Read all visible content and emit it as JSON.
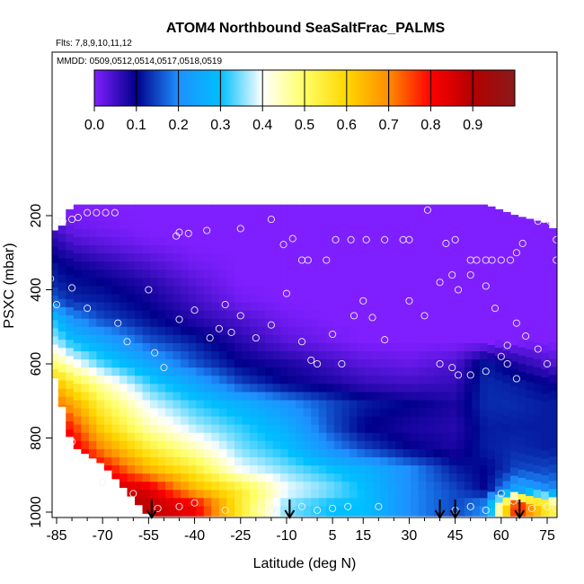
{
  "chart_data": {
    "type": "heatmap",
    "title": "ATOM4 Northbound SeaSaltFrac_PALMS",
    "flights_label": "Flts: 7,8,9,10,11,12",
    "dates_label": "MMDD: 0509,0512,0514,0517,0518,0519",
    "xlabel": "Latitude (deg N)",
    "ylabel": "PSXC (mbar)",
    "xlim": [
      -87,
      83
    ],
    "ylim": [
      1010,
      100
    ],
    "x_ticks": [
      -85,
      -70,
      -55,
      -40,
      -25,
      -10,
      5,
      15,
      30,
      45,
      60,
      75
    ],
    "y_ticks": [
      200,
      400,
      600,
      800,
      1000
    ],
    "colorbar": {
      "range": [
        0,
        1
      ],
      "tick_labels": [
        "0.0",
        "0.1",
        "0.2",
        "0.3",
        "0.4",
        "0.5",
        "0.6",
        "0.7",
        "0.8",
        "0.9"
      ],
      "colors": [
        "#7f1fff",
        "#00008b",
        "#1e90ff",
        "#00bfff",
        "#ffffff",
        "#ffff66",
        "#ffd700",
        "#ff8c00",
        "#ff0000",
        "#b30000",
        "#8b1a1a"
      ]
    },
    "columns": [
      {
        "lat": -87,
        "top": 240,
        "bottom": 600
      },
      {
        "lat": -84,
        "top": 240,
        "bottom": 690
      },
      {
        "lat": -80,
        "top": 170,
        "bottom": 820
      },
      {
        "lat": -70,
        "top": 170,
        "bottom": 870
      },
      {
        "lat": -55,
        "top": 170,
        "bottom": 1010
      },
      {
        "lat": -40,
        "top": 170,
        "bottom": 1010
      },
      {
        "lat": -25,
        "top": 170,
        "bottom": 1010
      },
      {
        "lat": -10,
        "top": 170,
        "bottom": 1010
      },
      {
        "lat": 5,
        "top": 170,
        "bottom": 1010
      },
      {
        "lat": 15,
        "top": 170,
        "bottom": 1010
      },
      {
        "lat": 30,
        "top": 170,
        "bottom": 1010
      },
      {
        "lat": 45,
        "top": 170,
        "bottom": 1010
      },
      {
        "lat": 55,
        "top": 170,
        "bottom": 1010
      },
      {
        "lat": 65,
        "top": 200,
        "bottom": 1010
      },
      {
        "lat": 75,
        "top": 220,
        "bottom": 1010
      },
      {
        "lat": 80,
        "top": 260,
        "bottom": 1010
      }
    ],
    "layers": [
      {
        "p": 180,
        "v": [
          0.0,
          0.0,
          0.0,
          0.0,
          0.0,
          0.0,
          0.0,
          0.0,
          0.0,
          0.0,
          0.0,
          0.0,
          0.0,
          0.0,
          0.0,
          0.0
        ]
      },
      {
        "p": 240,
        "v": [
          0.05,
          0.04,
          0.02,
          0.01,
          0.0,
          0.0,
          0.0,
          0.0,
          0.0,
          0.0,
          0.0,
          0.0,
          0.0,
          0.0,
          0.0,
          0.0
        ]
      },
      {
        "p": 280,
        "v": [
          0.08,
          0.07,
          0.05,
          0.03,
          0.01,
          0.0,
          0.0,
          0.0,
          0.0,
          0.0,
          0.0,
          0.0,
          0.0,
          0.0,
          0.0,
          0.0
        ]
      },
      {
        "p": 330,
        "v": [
          0.12,
          0.1,
          0.09,
          0.07,
          0.04,
          0.01,
          0.0,
          0.0,
          0.0,
          0.0,
          0.0,
          0.0,
          0.0,
          0.0,
          0.0,
          0.0
        ]
      },
      {
        "p": 380,
        "v": [
          0.13,
          0.12,
          0.11,
          0.1,
          0.07,
          0.03,
          0.0,
          0.0,
          0.0,
          0.0,
          0.0,
          0.0,
          0.0,
          0.0,
          0.0,
          0.0
        ]
      },
      {
        "p": 430,
        "v": [
          0.18,
          0.15,
          0.13,
          0.12,
          0.09,
          0.05,
          0.01,
          0.0,
          0.0,
          0.0,
          0.0,
          0.0,
          0.0,
          0.0,
          0.0,
          0.0
        ]
      },
      {
        "p": 480,
        "v": [
          0.32,
          0.27,
          0.21,
          0.15,
          0.11,
          0.07,
          0.04,
          0.01,
          0.0,
          0.0,
          0.0,
          0.0,
          0.0,
          0.0,
          0.0,
          0.0
        ]
      },
      {
        "p": 540,
        "v": [
          0.38,
          0.35,
          0.3,
          0.25,
          0.16,
          0.12,
          0.07,
          0.03,
          0.01,
          0.0,
          0.0,
          0.0,
          0.0,
          0.0,
          0.0,
          0.0
        ]
      },
      {
        "p": 600,
        "v": [
          0.5,
          0.47,
          0.42,
          0.33,
          0.25,
          0.16,
          0.1,
          0.08,
          0.05,
          0.03,
          0.02,
          0.04,
          0.12,
          0.08,
          0.04,
          0.03
        ]
      },
      {
        "p": 655,
        "v": [
          0.65,
          0.62,
          0.56,
          0.45,
          0.33,
          0.25,
          0.15,
          0.1,
          0.08,
          0.06,
          0.05,
          0.06,
          0.13,
          0.12,
          0.1,
          0.1
        ]
      },
      {
        "p": 710,
        "v": [
          0.75,
          0.72,
          0.67,
          0.53,
          0.39,
          0.32,
          0.27,
          0.21,
          0.15,
          0.12,
          0.1,
          0.08,
          0.13,
          0.13,
          0.12,
          0.12
        ]
      },
      {
        "p": 770,
        "v": [
          0.85,
          0.82,
          0.77,
          0.6,
          0.45,
          0.37,
          0.32,
          0.26,
          0.15,
          0.1,
          0.08,
          0.07,
          0.12,
          0.12,
          0.12,
          0.12
        ]
      },
      {
        "p": 830,
        "v": [
          0.88,
          0.86,
          0.84,
          0.7,
          0.55,
          0.45,
          0.35,
          0.3,
          0.2,
          0.15,
          0.1,
          0.08,
          0.12,
          0.13,
          0.12,
          0.12
        ]
      },
      {
        "p": 885,
        "v": [
          0.92,
          0.9,
          0.88,
          0.82,
          0.65,
          0.55,
          0.4,
          0.35,
          0.3,
          0.27,
          0.2,
          0.12,
          0.1,
          0.15,
          0.15,
          0.15
        ]
      },
      {
        "p": 940,
        "v": [
          0.95,
          0.93,
          0.91,
          0.88,
          0.85,
          0.65,
          0.55,
          0.4,
          0.35,
          0.3,
          0.2,
          0.15,
          0.1,
          0.25,
          0.2,
          0.2
        ]
      },
      {
        "p": 980,
        "v": [
          0.95,
          0.94,
          0.93,
          0.91,
          0.88,
          0.82,
          0.55,
          0.35,
          0.3,
          0.3,
          0.2,
          0.15,
          0.2,
          0.8,
          0.55,
          0.5
        ]
      }
    ],
    "points": [
      [
        -85,
        215
      ],
      [
        -83,
        215
      ],
      [
        -80,
        210
      ],
      [
        -78,
        205
      ],
      [
        -75,
        192
      ],
      [
        -72,
        192
      ],
      [
        -69,
        192
      ],
      [
        -66,
        192
      ],
      [
        -46,
        255
      ],
      [
        -45,
        245
      ],
      [
        -42,
        248
      ],
      [
        -36,
        240
      ],
      [
        -25,
        235
      ],
      [
        -15,
        210
      ],
      [
        -11,
        278
      ],
      [
        -8,
        262
      ],
      [
        -5,
        320
      ],
      [
        -3,
        320
      ],
      [
        3,
        320
      ],
      [
        6,
        265
      ],
      [
        11,
        265
      ],
      [
        16,
        265
      ],
      [
        22,
        265
      ],
      [
        28,
        265
      ],
      [
        30,
        265
      ],
      [
        36,
        185
      ],
      [
        42,
        275
      ],
      [
        45,
        265
      ],
      [
        50,
        320
      ],
      [
        52,
        320
      ],
      [
        55,
        320
      ],
      [
        57,
        320
      ],
      [
        60,
        320
      ],
      [
        63,
        320
      ],
      [
        65,
        300
      ],
      [
        67,
        275
      ],
      [
        72,
        215
      ],
      [
        74,
        210
      ],
      [
        76,
        215
      ],
      [
        78,
        265
      ],
      [
        80,
        275
      ],
      [
        82,
        280
      ],
      [
        -87,
        370
      ],
      [
        -85,
        440
      ],
      [
        -80,
        395
      ],
      [
        -75,
        450
      ],
      [
        -65,
        490
      ],
      [
        -62,
        540
      ],
      [
        -55,
        400
      ],
      [
        -53,
        570
      ],
      [
        -50,
        610
      ],
      [
        -45,
        480
      ],
      [
        -40,
        455
      ],
      [
        -35,
        530
      ],
      [
        -32,
        505
      ],
      [
        -30,
        440
      ],
      [
        -28,
        515
      ],
      [
        -25,
        470
      ],
      [
        -20,
        530
      ],
      [
        -15,
        495
      ],
      [
        -10,
        410
      ],
      [
        -5,
        540
      ],
      [
        -2,
        590
      ],
      [
        0,
        600
      ],
      [
        5,
        520
      ],
      [
        8,
        600
      ],
      [
        12,
        470
      ],
      [
        15,
        430
      ],
      [
        18,
        475
      ],
      [
        22,
        535
      ],
      [
        30,
        430
      ],
      [
        35,
        470
      ],
      [
        40,
        380
      ],
      [
        44,
        360
      ],
      [
        46,
        400
      ],
      [
        50,
        360
      ],
      [
        55,
        390
      ],
      [
        58,
        450
      ],
      [
        62,
        550
      ],
      [
        65,
        490
      ],
      [
        68,
        525
      ],
      [
        72,
        560
      ],
      [
        78,
        320
      ],
      [
        80,
        400
      ],
      [
        40,
        600
      ],
      [
        44,
        610
      ],
      [
        46,
        630
      ],
      [
        50,
        630
      ],
      [
        55,
        620
      ],
      [
        60,
        580
      ],
      [
        62,
        600
      ],
      [
        65,
        640
      ],
      [
        75,
        600
      ],
      [
        80,
        555
      ],
      [
        -87,
        610
      ],
      [
        -80,
        810
      ],
      [
        -70,
        920
      ],
      [
        -60,
        950
      ],
      [
        -52,
        990
      ],
      [
        -45,
        985
      ],
      [
        -40,
        975
      ],
      [
        -30,
        995
      ],
      [
        -20,
        990
      ],
      [
        -15,
        995
      ],
      [
        -5,
        985
      ],
      [
        0,
        995
      ],
      [
        5,
        990
      ],
      [
        10,
        985
      ],
      [
        20,
        985
      ],
      [
        45,
        995
      ],
      [
        50,
        985
      ],
      [
        55,
        995
      ],
      [
        60,
        950
      ],
      [
        64,
        970
      ],
      [
        70,
        990
      ],
      [
        75,
        985
      ],
      [
        78,
        990
      ]
    ],
    "arrows": [
      -54,
      -9,
      40,
      45,
      66
    ]
  }
}
